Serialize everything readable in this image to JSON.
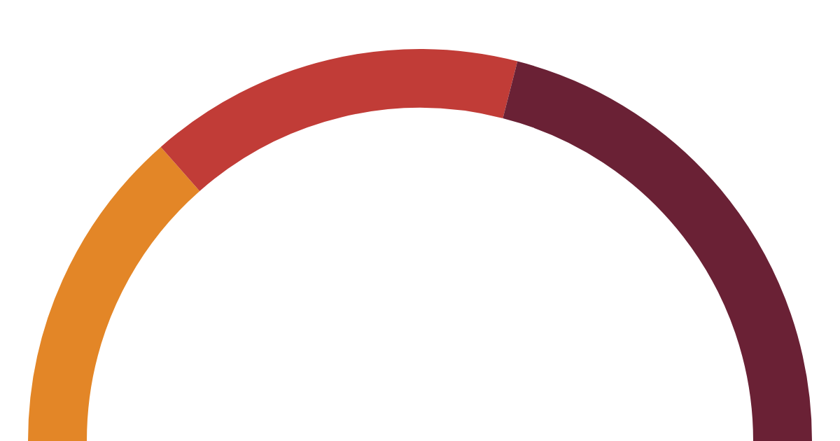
{
  "chart_data": {
    "type": "donut",
    "categories": [
      null,
      null,
      null
    ],
    "values": [
      27,
      31,
      42
    ],
    "colors": [
      "#e38627",
      "#c13c37",
      "#6a2135"
    ]
  }
}
